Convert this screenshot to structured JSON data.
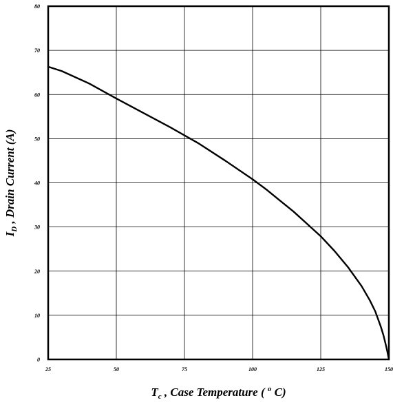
{
  "chart_data": {
    "type": "line",
    "xlabel": {
      "main": "T",
      "sub": "c",
      "rest": " , Case Temperature ( ",
      "sup": "o",
      "end": " C)"
    },
    "ylabel": {
      "main": "I",
      "sub": "D",
      "rest": " , Drain Current (A)"
    },
    "xlim": [
      25,
      150
    ],
    "ylim": [
      0,
      80
    ],
    "x_ticks": [
      25,
      50,
      75,
      100,
      125,
      150
    ],
    "y_ticks": [
      0,
      10,
      20,
      30,
      40,
      50,
      60,
      70,
      80
    ],
    "x_tick_labels": [
      "25",
      "50",
      "75",
      "100",
      "125",
      "150"
    ],
    "y_tick_labels": [
      "0",
      "10",
      "20",
      "30",
      "40",
      "50",
      "60",
      "70",
      "80"
    ],
    "grid": true,
    "series": [
      {
        "color": "#000000",
        "x": [
          25,
          30,
          40,
          50,
          60,
          70,
          80,
          90,
          100,
          105,
          110,
          115,
          120,
          125,
          130,
          135,
          140,
          143,
          145,
          147,
          148,
          149,
          149.5,
          150
        ],
        "y": [
          66.3,
          65.3,
          62.5,
          59.1,
          55.8,
          52.5,
          49.0,
          45.0,
          40.8,
          38.5,
          36.0,
          33.5,
          30.7,
          27.9,
          24.6,
          20.9,
          16.6,
          13.4,
          10.9,
          7.5,
          5.5,
          3.0,
          1.6,
          0
        ]
      }
    ]
  }
}
